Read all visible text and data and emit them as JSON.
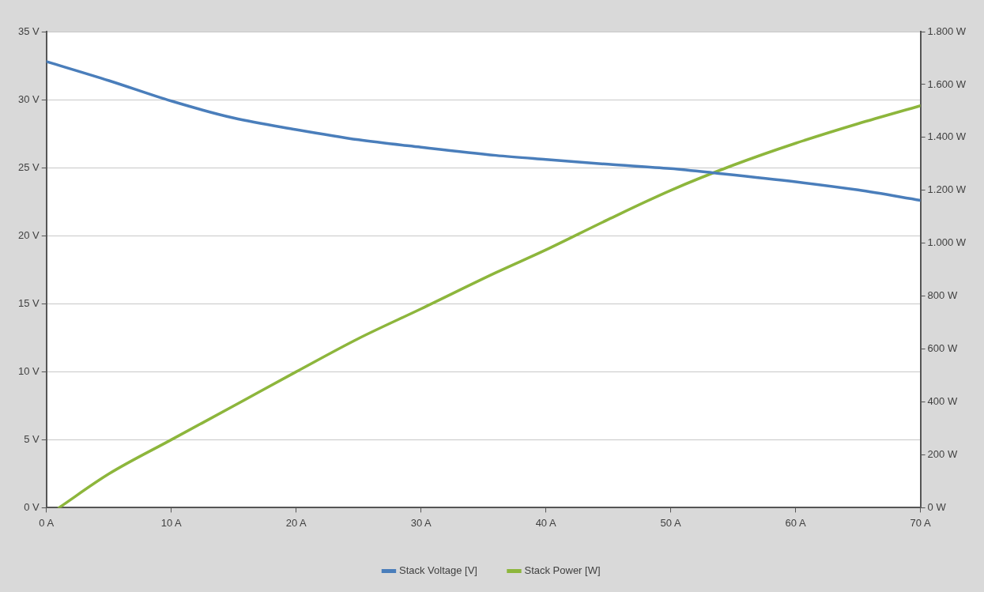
{
  "chart_data": {
    "type": "line",
    "series": [
      {
        "name": "Stack Voltage [V]",
        "color": "#4a7ebb",
        "x": [
          0,
          5,
          10,
          15,
          20,
          25,
          30,
          36,
          40,
          45,
          50,
          53.6,
          60,
          65,
          70
        ],
        "values": [
          32.8,
          31.4,
          29.9,
          28.65,
          27.8,
          27.05,
          26.5,
          25.9,
          25.6,
          25.25,
          24.93,
          24.6,
          23.96,
          23.36,
          22.6
        ]
      },
      {
        "name": "Stack Power [W]",
        "color": "#8db63c",
        "axis": "y2",
        "x": [
          1,
          5,
          10,
          15,
          20,
          25,
          30,
          36,
          40,
          45,
          50,
          55,
          60,
          65,
          70
        ],
        "values": [
          0,
          128,
          257,
          385,
          514,
          640,
          752,
          889,
          975,
          1090,
          1200,
          1295,
          1378,
          1452,
          1520
        ]
      }
    ],
    "xlim": [
      0,
      70
    ],
    "xticks": [
      {
        "value": 0,
        "label": "0 A"
      },
      {
        "value": 10,
        "label": "10 A"
      },
      {
        "value": 20,
        "label": "20 A"
      },
      {
        "value": 30,
        "label": "30 A"
      },
      {
        "value": 40,
        "label": "40 A"
      },
      {
        "value": 50,
        "label": "50 A"
      },
      {
        "value": 60,
        "label": "60 A"
      },
      {
        "value": 70,
        "label": "70 A"
      }
    ],
    "ylim": [
      0,
      35
    ],
    "yticks": [
      {
        "value": 0,
        "label": "0 V"
      },
      {
        "value": 5,
        "label": "5 V"
      },
      {
        "value": 10,
        "label": "10 V"
      },
      {
        "value": 15,
        "label": "15 V"
      },
      {
        "value": 20,
        "label": "20 V"
      },
      {
        "value": 25,
        "label": "25 V"
      },
      {
        "value": 30,
        "label": "30 V"
      },
      {
        "value": 35,
        "label": "35 V"
      }
    ],
    "y2lim": [
      0,
      1800
    ],
    "y2ticks": [
      {
        "value": 0,
        "label": "0 W"
      },
      {
        "value": 200,
        "label": "200 W"
      },
      {
        "value": 400,
        "label": "400 W"
      },
      {
        "value": 600,
        "label": "600 W"
      },
      {
        "value": 800,
        "label": "800 W"
      },
      {
        "value": 1000,
        "label": "1.000 W"
      },
      {
        "value": 1200,
        "label": "1.200 W"
      },
      {
        "value": 1400,
        "label": "1.400 W"
      },
      {
        "value": 1600,
        "label": "1.600 W"
      },
      {
        "value": 1800,
        "label": "1.800 W"
      }
    ],
    "grid": "y",
    "legend": "bottom",
    "marker": "none",
    "line_style": "solid"
  }
}
